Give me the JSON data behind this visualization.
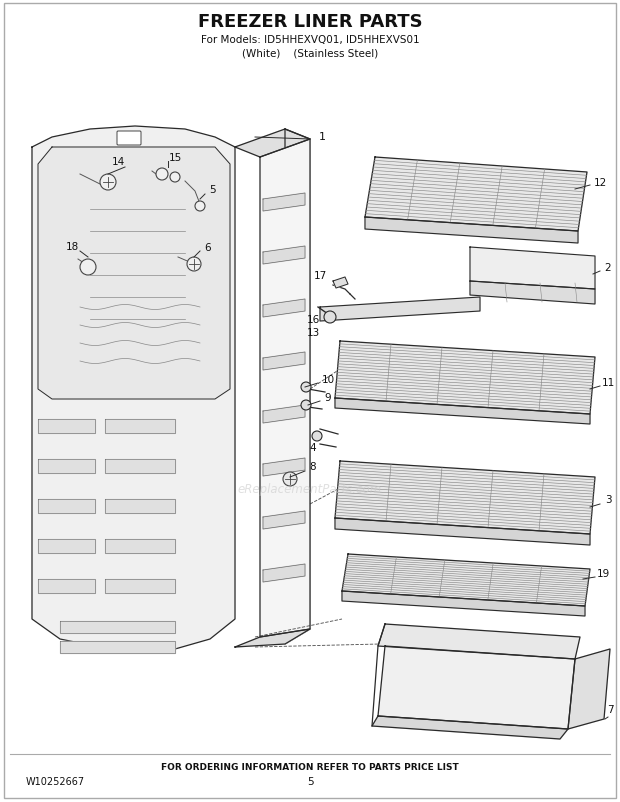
{
  "title": "FREEZER LINER PARTS",
  "subtitle1": "For Models: ID5HHEXVQ01, ID5HHEXVS01",
  "subtitle2": "(White)    (Stainless Steel)",
  "footer": "FOR ORDERING INFORMATION REFER TO PARTS PRICE LIST",
  "part_number": "W10252667",
  "page": "5",
  "background": "#ffffff",
  "watermark": "eReplacementParts.com",
  "watermark_color": "#cccccc"
}
